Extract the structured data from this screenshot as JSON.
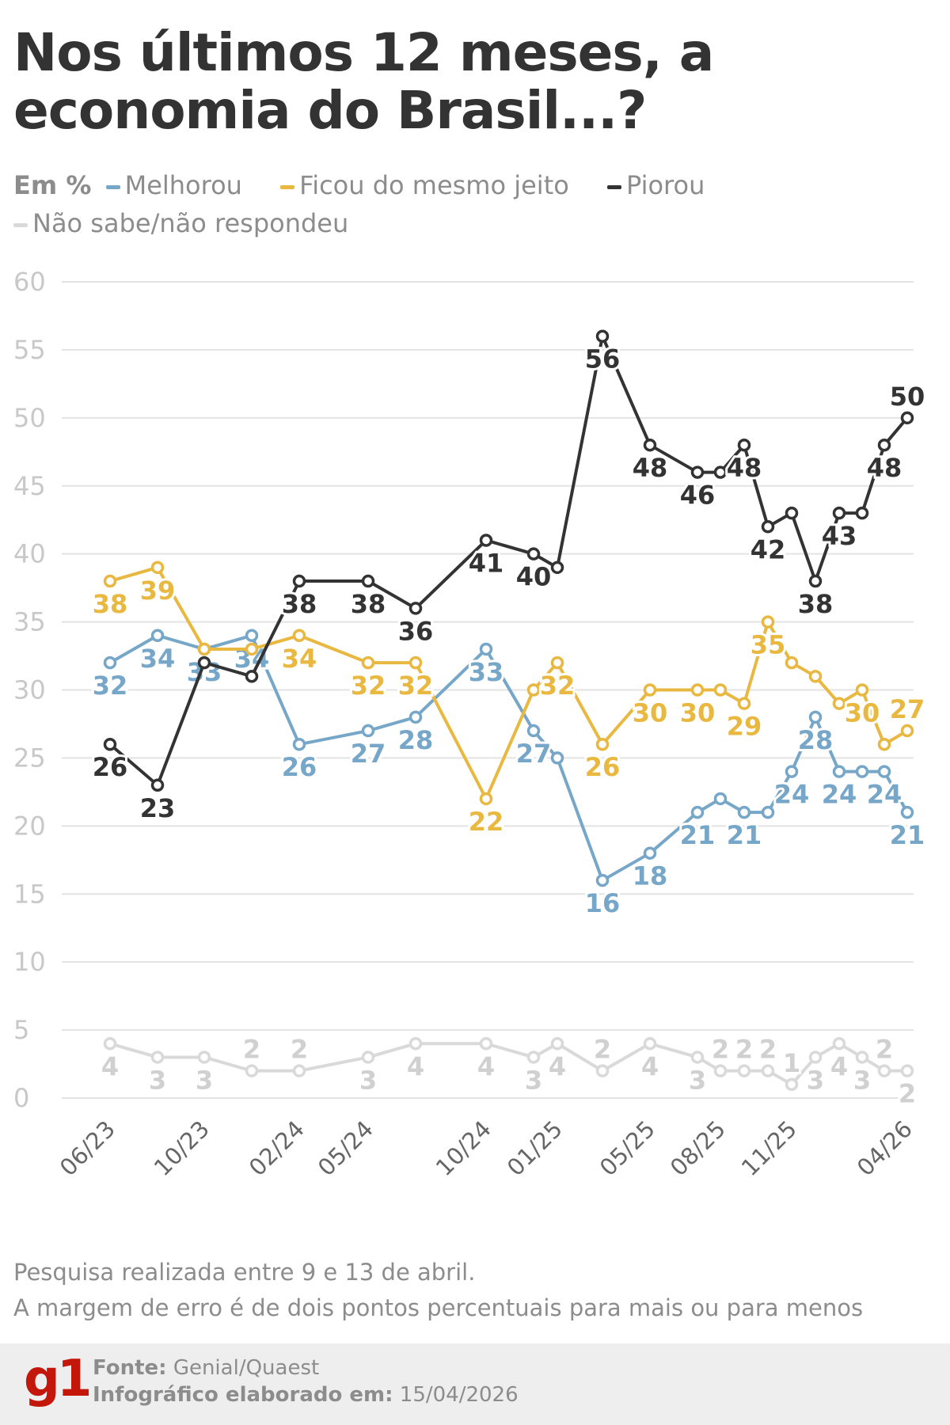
{
  "title": "Nos últimos 12 meses, a economia do Brasil...?",
  "legend": {
    "unit": "Em %",
    "items": [
      {
        "label": "Melhorou",
        "color": "#77a7c8"
      },
      {
        "label": "Ficou do mesmo jeito",
        "color": "#e9b840"
      },
      {
        "label": "Piorou",
        "color": "#333333"
      },
      {
        "label": "Não sabe/não respondeu",
        "color": "#d9d9d9"
      }
    ]
  },
  "chart_data": {
    "type": "line",
    "ylim": [
      0,
      60
    ],
    "yticks": [
      0,
      5,
      10,
      15,
      20,
      25,
      30,
      35,
      40,
      45,
      50,
      55,
      60
    ],
    "grid": true,
    "legend_position": "top",
    "xtick_labels": [
      {
        "index": 0,
        "label": "06/23"
      },
      {
        "index": 2,
        "label": "10/23"
      },
      {
        "index": 4,
        "label": "02/24"
      },
      {
        "index": 5,
        "label": "05/24"
      },
      {
        "index": 7,
        "label": "10/24"
      },
      {
        "index": 9,
        "label": "01/25"
      },
      {
        "index": 11,
        "label": "05/25"
      },
      {
        "index": 13,
        "label": "08/25"
      },
      {
        "index": 16,
        "label": "11/25"
      },
      {
        "index": 21,
        "label": "04/26"
      }
    ],
    "series": [
      {
        "name": "Não sabe/não respondeu",
        "color": "#d9d9d9",
        "label_color": "#d0d0d0",
        "values": [
          4,
          3,
          3,
          2,
          2,
          3,
          4,
          4,
          3,
          4,
          2,
          4,
          3,
          2,
          2,
          2,
          1,
          3,
          4,
          3,
          2,
          2
        ],
        "labels": [
          "4",
          "3",
          "3",
          "2",
          "2",
          "3",
          "4",
          "4",
          "3",
          "4",
          "2",
          "4",
          "3",
          "2",
          "2",
          "2",
          "1",
          "3",
          "4",
          "3",
          "2",
          "2"
        ]
      },
      {
        "name": "Melhorou",
        "color": "#77a7c8",
        "label_color": "#77a7c8",
        "values": [
          32,
          34,
          33,
          34,
          26,
          27,
          28,
          33,
          27,
          25,
          16,
          18,
          21,
          22,
          21,
          21,
          24,
          28,
          24,
          24,
          24,
          21
        ],
        "labels": [
          "32",
          "34",
          "33",
          "34",
          "26",
          "27",
          "28",
          "33",
          "27",
          null,
          "16",
          "18",
          "21",
          null,
          "21",
          null,
          "24",
          "28",
          "24",
          null,
          "24",
          "21"
        ]
      },
      {
        "name": "Ficou do mesmo jeito",
        "color": "#e9b840",
        "label_color": "#e9b840",
        "values": [
          38,
          39,
          33,
          33,
          34,
          32,
          32,
          22,
          30,
          32,
          26,
          30,
          30,
          30,
          29,
          35,
          32,
          31,
          29,
          30,
          26,
          27
        ],
        "labels": [
          "38",
          "39",
          null,
          null,
          "34",
          "32",
          "32",
          "22",
          null,
          "32",
          "26",
          "30",
          "30",
          null,
          "29",
          "35",
          null,
          null,
          null,
          "30",
          null,
          "27"
        ]
      },
      {
        "name": "Piorou",
        "color": "#333333",
        "label_color": "#333333",
        "values": [
          26,
          23,
          32,
          31,
          38,
          38,
          36,
          41,
          40,
          39,
          56,
          48,
          46,
          46,
          48,
          42,
          43,
          38,
          43,
          43,
          48,
          50
        ],
        "labels": [
          "26",
          "23",
          null,
          null,
          "38",
          "38",
          "36",
          "41",
          "40",
          null,
          "56",
          "48",
          "46",
          null,
          "48",
          "42",
          null,
          "38",
          "43",
          null,
          "48",
          "50"
        ]
      }
    ]
  },
  "notes": [
    "Pesquisa realizada entre 9 e 13 de abril.",
    "A margem de erro é de dois pontos percentuais para mais ou para menos"
  ],
  "footer": {
    "logo": "g1",
    "source_label": "Fonte:",
    "source_value": "Genial/Quaest",
    "date_label": "Infográfico elaborado em:",
    "date_value": "15/04/2026"
  }
}
